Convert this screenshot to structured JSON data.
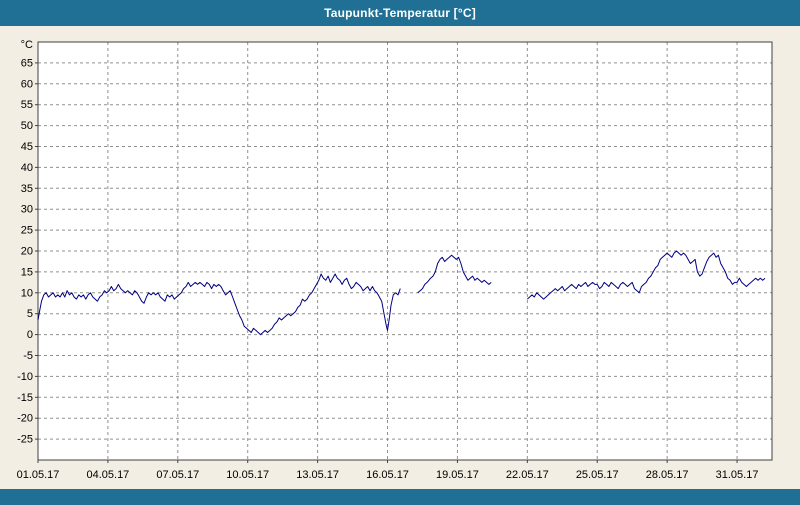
{
  "window": {
    "title": "Taupunkt-Temperatur [°C]"
  },
  "colors": {
    "title_bar": "#1f7094",
    "title_text": "#ffffff",
    "background": "#f2eee3",
    "plot_bg": "#ffffff",
    "grid": "#909090",
    "border": "#404040",
    "line": "#000080",
    "text": "#000000"
  },
  "chart_data": {
    "type": "line",
    "title": "Taupunkt-Temperatur [°C]",
    "xlabel": "",
    "ylabel": "°C",
    "unit_label": "°C",
    "ylim": [
      -30,
      70
    ],
    "xlim_days": [
      0,
      31.5
    ],
    "grid": "dashed",
    "legend_position": "none",
    "y_ticks": [
      65,
      60,
      55,
      50,
      45,
      40,
      35,
      30,
      25,
      20,
      15,
      10,
      5,
      0,
      -5,
      -10,
      -15,
      -20,
      -25
    ],
    "x_ticks": [
      {
        "day": 0,
        "label": "01.05.17"
      },
      {
        "day": 3,
        "label": "04.05.17"
      },
      {
        "day": 6,
        "label": "07.05.17"
      },
      {
        "day": 9,
        "label": "10.05.17"
      },
      {
        "day": 12,
        "label": "13.05.17"
      },
      {
        "day": 15,
        "label": "16.05.17"
      },
      {
        "day": 18,
        "label": "19.05.17"
      },
      {
        "day": 21,
        "label": "22.05.17"
      },
      {
        "day": 24,
        "label": "25.05.17"
      },
      {
        "day": 27,
        "label": "28.05.17"
      },
      {
        "day": 30,
        "label": "31.05.17"
      }
    ],
    "series": [
      {
        "name": "Taupunkt-Temperatur",
        "color": "#000080",
        "points": [
          [
            0,
            3.5
          ],
          [
            0.08,
            6
          ],
          [
            0.15,
            8
          ],
          [
            0.25,
            9.5
          ],
          [
            0.35,
            10
          ],
          [
            0.45,
            9
          ],
          [
            0.55,
            9.5
          ],
          [
            0.65,
            10
          ],
          [
            0.75,
            9
          ],
          [
            0.85,
            9.5
          ],
          [
            0.95,
            9
          ],
          [
            1.05,
            10
          ],
          [
            1.15,
            9
          ],
          [
            1.25,
            10.5
          ],
          [
            1.35,
            9.5
          ],
          [
            1.45,
            10
          ],
          [
            1.55,
            9
          ],
          [
            1.65,
            8.5
          ],
          [
            1.75,
            9.5
          ],
          [
            1.85,
            9
          ],
          [
            1.95,
            9.5
          ],
          [
            2.05,
            8.5
          ],
          [
            2.15,
            9.5
          ],
          [
            2.25,
            10
          ],
          [
            2.35,
            9
          ],
          [
            2.45,
            8.5
          ],
          [
            2.55,
            8
          ],
          [
            2.65,
            9
          ],
          [
            2.75,
            9.5
          ],
          [
            2.85,
            10.5
          ],
          [
            2.95,
            10
          ],
          [
            3.05,
            10.5
          ],
          [
            3.15,
            11.5
          ],
          [
            3.25,
            10.5
          ],
          [
            3.35,
            11
          ],
          [
            3.45,
            12
          ],
          [
            3.55,
            11
          ],
          [
            3.65,
            10.5
          ],
          [
            3.75,
            10
          ],
          [
            3.85,
            10.5
          ],
          [
            3.95,
            10
          ],
          [
            4.05,
            9.5
          ],
          [
            4.15,
            10.5
          ],
          [
            4.25,
            10
          ],
          [
            4.35,
            9
          ],
          [
            4.45,
            8
          ],
          [
            4.55,
            7.5
          ],
          [
            4.65,
            9
          ],
          [
            4.75,
            10
          ],
          [
            4.85,
            9.5
          ],
          [
            4.95,
            10
          ],
          [
            5.05,
            9.5
          ],
          [
            5.15,
            10
          ],
          [
            5.25,
            9
          ],
          [
            5.35,
            8.5
          ],
          [
            5.45,
            8
          ],
          [
            5.55,
            9.5
          ],
          [
            5.65,
            9
          ],
          [
            5.75,
            9.5
          ],
          [
            5.85,
            8.5
          ],
          [
            5.95,
            9
          ],
          [
            6.05,
            9.5
          ],
          [
            6.15,
            10
          ],
          [
            6.25,
            11
          ],
          [
            6.35,
            11.5
          ],
          [
            6.45,
            12.5
          ],
          [
            6.55,
            11.5
          ],
          [
            6.65,
            12
          ],
          [
            6.75,
            12.5
          ],
          [
            6.85,
            12
          ],
          [
            6.95,
            12.5
          ],
          [
            7.05,
            12
          ],
          [
            7.15,
            11.5
          ],
          [
            7.25,
            12.5
          ],
          [
            7.35,
            12
          ],
          [
            7.45,
            11
          ],
          [
            7.55,
            12
          ],
          [
            7.65,
            11.5
          ],
          [
            7.75,
            12
          ],
          [
            7.85,
            11.5
          ],
          [
            7.95,
            10.5
          ],
          [
            8.05,
            9.5
          ],
          [
            8.15,
            10
          ],
          [
            8.25,
            10.5
          ],
          [
            8.35,
            9
          ],
          [
            8.45,
            7.5
          ],
          [
            8.55,
            6
          ],
          [
            8.65,
            4.5
          ],
          [
            8.75,
            3.5
          ],
          [
            8.85,
            2
          ],
          [
            8.95,
            1.5
          ],
          [
            9.05,
            1
          ],
          [
            9.15,
            0.5
          ],
          [
            9.25,
            1.5
          ],
          [
            9.35,
            1
          ],
          [
            9.45,
            0.5
          ],
          [
            9.55,
            0
          ],
          [
            9.65,
            0.5
          ],
          [
            9.75,
            1
          ],
          [
            9.85,
            0.5
          ],
          [
            9.95,
            1
          ],
          [
            10.05,
            1.5
          ],
          [
            10.15,
            2.5
          ],
          [
            10.25,
            3
          ],
          [
            10.35,
            4
          ],
          [
            10.45,
            3.5
          ],
          [
            10.55,
            4
          ],
          [
            10.65,
            4.5
          ],
          [
            10.75,
            5
          ],
          [
            10.85,
            4.5
          ],
          [
            10.95,
            5
          ],
          [
            11.05,
            5.5
          ],
          [
            11.15,
            6.5
          ],
          [
            11.25,
            7
          ],
          [
            11.35,
            8.5
          ],
          [
            11.45,
            8
          ],
          [
            11.55,
            8.5
          ],
          [
            11.65,
            9.5
          ],
          [
            11.75,
            10
          ],
          [
            11.85,
            11
          ],
          [
            11.95,
            12
          ],
          [
            12.05,
            13
          ],
          [
            12.15,
            14.5
          ],
          [
            12.25,
            13.5
          ],
          [
            12.35,
            13
          ],
          [
            12.45,
            14
          ],
          [
            12.55,
            12.5
          ],
          [
            12.65,
            13.5
          ],
          [
            12.75,
            14.5
          ],
          [
            12.85,
            13.5
          ],
          [
            12.95,
            13
          ],
          [
            13.05,
            12
          ],
          [
            13.15,
            13
          ],
          [
            13.25,
            13.5
          ],
          [
            13.35,
            12
          ],
          [
            13.45,
            11
          ],
          [
            13.55,
            11.5
          ],
          [
            13.65,
            12.5
          ],
          [
            13.75,
            12
          ],
          [
            13.85,
            11.5
          ],
          [
            13.95,
            10.5
          ],
          [
            14.05,
            11
          ],
          [
            14.15,
            11.5
          ],
          [
            14.25,
            10.5
          ],
          [
            14.35,
            11.5
          ],
          [
            14.45,
            10.5
          ],
          [
            14.55,
            10
          ],
          [
            14.65,
            9
          ],
          [
            14.75,
            8
          ],
          [
            14.85,
            5
          ],
          [
            14.95,
            2
          ],
          [
            15.0,
            1
          ],
          [
            15.08,
            4
          ],
          [
            15.15,
            7
          ],
          [
            15.25,
            9.5
          ],
          [
            15.35,
            10
          ],
          [
            15.45,
            9.5
          ],
          [
            15.55,
            11
          ],
          [
            15.6,
            null
          ],
          [
            16.3,
            10
          ],
          [
            16.4,
            10.5
          ],
          [
            16.5,
            11
          ],
          [
            16.6,
            12
          ],
          [
            16.7,
            12.5
          ],
          [
            16.85,
            13.5
          ],
          [
            16.95,
            14
          ],
          [
            17.05,
            15
          ],
          [
            17.15,
            17
          ],
          [
            17.25,
            18
          ],
          [
            17.35,
            18.5
          ],
          [
            17.45,
            17.5
          ],
          [
            17.55,
            18
          ],
          [
            17.65,
            18.5
          ],
          [
            17.75,
            19
          ],
          [
            17.85,
            18.5
          ],
          [
            17.95,
            18
          ],
          [
            18.05,
            18.5
          ],
          [
            18.15,
            17
          ],
          [
            18.25,
            15
          ],
          [
            18.35,
            14
          ],
          [
            18.45,
            13
          ],
          [
            18.55,
            13.5
          ],
          [
            18.65,
            14
          ],
          [
            18.75,
            13
          ],
          [
            18.85,
            13.5
          ],
          [
            18.95,
            13
          ],
          [
            19.05,
            12.5
          ],
          [
            19.15,
            13
          ],
          [
            19.25,
            12.5
          ],
          [
            19.35,
            12
          ],
          [
            19.45,
            12.5
          ],
          [
            19.5,
            null
          ],
          [
            21.0,
            8.5
          ],
          [
            21.1,
            9
          ],
          [
            21.2,
            9.5
          ],
          [
            21.3,
            9
          ],
          [
            21.4,
            10
          ],
          [
            21.5,
            9.5
          ],
          [
            21.6,
            9
          ],
          [
            21.7,
            8.5
          ],
          [
            21.8,
            9
          ],
          [
            21.9,
            9.5
          ],
          [
            22.0,
            10
          ],
          [
            22.1,
            10.5
          ],
          [
            22.2,
            11
          ],
          [
            22.3,
            10.5
          ],
          [
            22.4,
            11
          ],
          [
            22.5,
            11.5
          ],
          [
            22.6,
            10.5
          ],
          [
            22.7,
            11
          ],
          [
            22.8,
            11.5
          ],
          [
            22.9,
            12
          ],
          [
            23.0,
            11.5
          ],
          [
            23.1,
            11
          ],
          [
            23.2,
            12
          ],
          [
            23.3,
            11.5
          ],
          [
            23.4,
            12
          ],
          [
            23.5,
            12.5
          ],
          [
            23.6,
            11.5
          ],
          [
            23.7,
            12
          ],
          [
            23.8,
            12.5
          ],
          [
            23.9,
            12
          ],
          [
            24.0,
            12
          ],
          [
            24.1,
            11
          ],
          [
            24.2,
            11.5
          ],
          [
            24.3,
            12.5
          ],
          [
            24.4,
            12
          ],
          [
            24.5,
            11.5
          ],
          [
            24.6,
            12.5
          ],
          [
            24.7,
            12
          ],
          [
            24.8,
            11.5
          ],
          [
            24.9,
            11
          ],
          [
            25.0,
            12
          ],
          [
            25.1,
            12.5
          ],
          [
            25.2,
            12
          ],
          [
            25.3,
            11.5
          ],
          [
            25.4,
            12
          ],
          [
            25.5,
            12.5
          ],
          [
            25.6,
            11
          ],
          [
            25.7,
            10.5
          ],
          [
            25.8,
            10
          ],
          [
            25.9,
            11.5
          ],
          [
            26.0,
            12
          ],
          [
            26.1,
            12.5
          ],
          [
            26.2,
            13.5
          ],
          [
            26.3,
            14
          ],
          [
            26.4,
            15
          ],
          [
            26.5,
            16
          ],
          [
            26.6,
            16.5
          ],
          [
            26.7,
            18
          ],
          [
            26.8,
            18.5
          ],
          [
            26.9,
            19
          ],
          [
            27.0,
            19.5
          ],
          [
            27.1,
            19
          ],
          [
            27.2,
            18.5
          ],
          [
            27.3,
            19.5
          ],
          [
            27.4,
            20
          ],
          [
            27.5,
            19.5
          ],
          [
            27.6,
            19
          ],
          [
            27.7,
            19.5
          ],
          [
            27.8,
            19
          ],
          [
            27.9,
            18
          ],
          [
            28.0,
            17
          ],
          [
            28.1,
            17.5
          ],
          [
            28.2,
            18
          ],
          [
            28.3,
            15
          ],
          [
            28.4,
            14
          ],
          [
            28.5,
            14.5
          ],
          [
            28.6,
            16
          ],
          [
            28.7,
            17.5
          ],
          [
            28.8,
            18.5
          ],
          [
            28.9,
            19
          ],
          [
            29.0,
            19.5
          ],
          [
            29.1,
            18.5
          ],
          [
            29.2,
            19
          ],
          [
            29.3,
            17
          ],
          [
            29.4,
            16
          ],
          [
            29.5,
            15
          ],
          [
            29.6,
            13.5
          ],
          [
            29.7,
            13
          ],
          [
            29.8,
            12
          ],
          [
            29.9,
            12.5
          ],
          [
            30.0,
            12.5
          ],
          [
            30.1,
            13.5
          ],
          [
            30.2,
            12.5
          ],
          [
            30.3,
            12
          ],
          [
            30.4,
            11.5
          ],
          [
            30.5,
            12
          ],
          [
            30.6,
            12.5
          ],
          [
            30.7,
            13
          ],
          [
            30.8,
            13.5
          ],
          [
            30.9,
            13
          ],
          [
            31.0,
            13.5
          ],
          [
            31.1,
            13
          ],
          [
            31.2,
            13.5
          ]
        ]
      }
    ]
  }
}
